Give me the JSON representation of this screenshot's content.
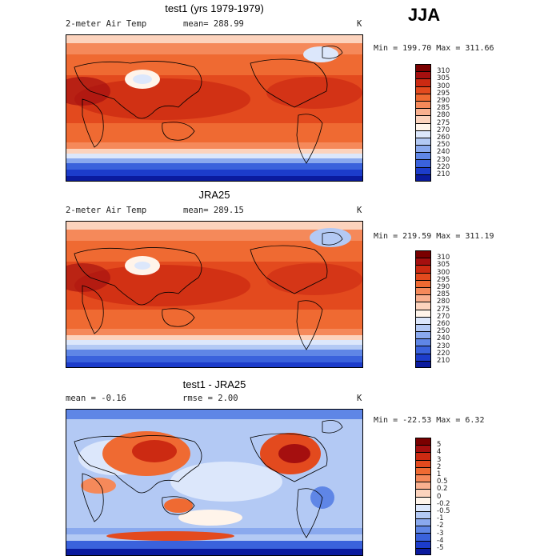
{
  "season": "JJA",
  "panels": [
    {
      "id": "test1",
      "title": "test1 (yrs 1979-1979)",
      "left_label": "2-meter Air Temp",
      "stat_text": "mean= 288.99",
      "units": "K",
      "minmax": "Min = 199.70 Max = 311.66",
      "colorbar": {
        "labels": [
          "310",
          "305",
          "300",
          "295",
          "290",
          "285",
          "280",
          "275",
          "270",
          "260",
          "250",
          "240",
          "230",
          "220",
          "210"
        ],
        "colors": [
          "#7a0000",
          "#a50f0f",
          "#cc2a12",
          "#e34a1e",
          "#ef6a32",
          "#f5895a",
          "#f9b08f",
          "#fcd3bd",
          "#fff4ea",
          "#dce7fb",
          "#b3c9f4",
          "#8aa9ee",
          "#5f86e6",
          "#3a62dc",
          "#1c3ccb",
          "#0a1a9e"
        ]
      }
    },
    {
      "id": "jra25",
      "title": "JRA25",
      "left_label": "2-meter Air Temp",
      "stat_text": "mean= 289.15",
      "units": "K",
      "minmax": "Min = 219.59 Max = 311.19",
      "colorbar": {
        "labels": [
          "310",
          "305",
          "300",
          "295",
          "290",
          "285",
          "280",
          "275",
          "270",
          "260",
          "250",
          "240",
          "230",
          "220",
          "210"
        ],
        "colors": [
          "#7a0000",
          "#a50f0f",
          "#cc2a12",
          "#e34a1e",
          "#ef6a32",
          "#f5895a",
          "#f9b08f",
          "#fcd3bd",
          "#fff4ea",
          "#dce7fb",
          "#b3c9f4",
          "#8aa9ee",
          "#5f86e6",
          "#3a62dc",
          "#1c3ccb",
          "#0a1a9e"
        ]
      }
    },
    {
      "id": "diff",
      "title": "test1 - JRA25",
      "left_label": "mean =   -0.16",
      "stat_text": "rmse =    2.00",
      "units": "K",
      "minmax": "Min = -22.53 Max =   6.32",
      "colorbar": {
        "labels": [
          "5",
          "4",
          "3",
          "2",
          "1",
          "0.5",
          "0.2",
          "0",
          "-0.2",
          "-0.5",
          "-1",
          "-2",
          "-3",
          "-4",
          "-5"
        ],
        "colors": [
          "#7a0000",
          "#a50f0f",
          "#cc2a12",
          "#e34a1e",
          "#ef6a32",
          "#f5895a",
          "#f9b08f",
          "#fcd3bd",
          "#fff4ea",
          "#dce7fb",
          "#b3c9f4",
          "#8aa9ee",
          "#5f86e6",
          "#3a62dc",
          "#1c3ccb",
          "#0a1a9e"
        ]
      }
    }
  ]
}
